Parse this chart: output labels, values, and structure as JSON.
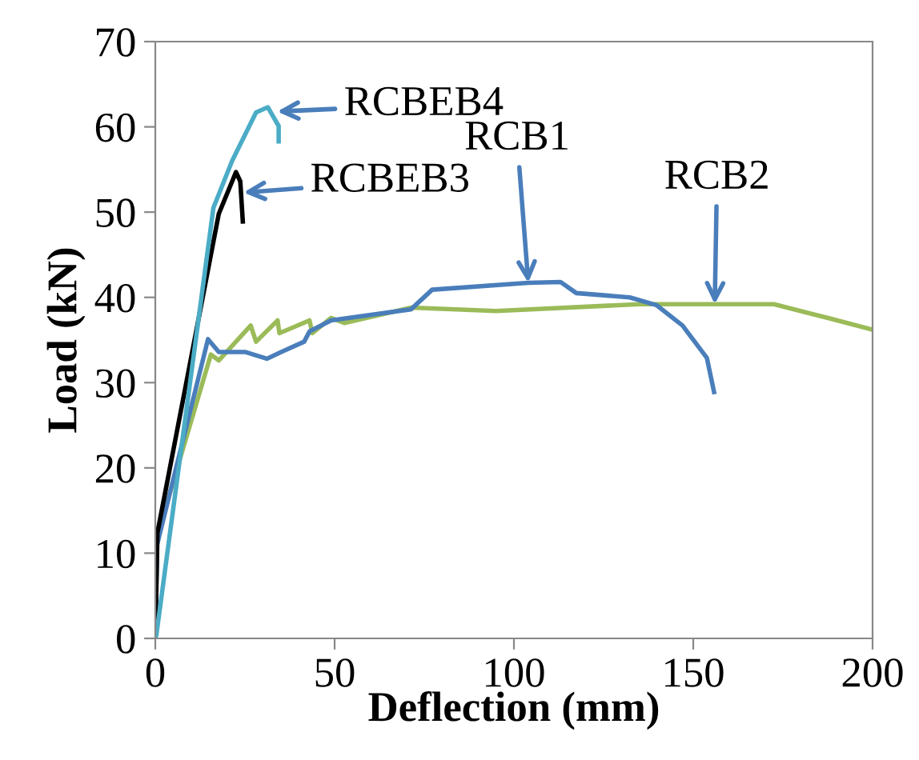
{
  "chart_data": {
    "type": "line",
    "xlabel": "Deflection (mm)",
    "ylabel": "Load (kN)",
    "xlim": [
      0,
      200
    ],
    "ylim": [
      0,
      70
    ],
    "xticks": [
      0,
      50,
      100,
      150,
      200
    ],
    "yticks": [
      0,
      10,
      20,
      30,
      40,
      50,
      60,
      70
    ],
    "grid": false,
    "legend": false,
    "marker": "none",
    "line_style": "solid",
    "series": [
      {
        "color": "#9bbb59",
        "x": [
          0,
          0.5,
          15.5,
          17.7,
          26.6,
          28.1,
          34.1,
          34.6,
          43,
          43.8,
          49,
          52.7,
          71.3,
          95,
          135,
          172.5,
          187.4,
          200
        ],
        "values": [
          0,
          12,
          33.3,
          32.6,
          36.7,
          34.8,
          37.3,
          35.8,
          37.3,
          35.8,
          37.6,
          37,
          38.8,
          38.4,
          39.2,
          39.2,
          37.6,
          36.2
        ]
      },
      {
        "color": "#4a7ebb",
        "x": [
          0,
          0.5,
          14.7,
          17.7,
          25,
          31.1,
          35.1,
          41.5,
          43,
          49,
          71.3,
          77.2,
          104,
          113,
          117.4,
          132.3,
          139.7,
          147,
          153.8,
          155.8
        ],
        "values": [
          0,
          11,
          35.1,
          33.6,
          33.6,
          32.8,
          33.6,
          34.8,
          36,
          37.3,
          38.6,
          40.9,
          41.7,
          41.8,
          40.5,
          40,
          39.1,
          36.7,
          32.9,
          28.9
        ]
      },
      {
        "color": "#000000",
        "x": [
          0,
          0.6,
          17.7,
          22.5,
          23.7,
          24.4
        ],
        "values": [
          0,
          12.4,
          49.8,
          54.7,
          53.6,
          48.9
        ]
      },
      {
        "color": "#4bacc6",
        "x": [
          0,
          0.3,
          16.2,
          21.4,
          28.1,
          31.4,
          32.6,
          34.4,
          34.4
        ],
        "values": [
          0,
          0.4,
          50.5,
          56,
          61.7,
          62.3,
          61.4,
          60.1,
          58.3
        ]
      }
    ],
    "annotations": [
      {
        "text": "RCBEB4",
        "x": 34,
        "y": 61.8
      },
      {
        "text": "RCBEB3",
        "x": 24.6,
        "y": 52.3
      },
      {
        "text": "RCB1",
        "x": 104,
        "y": 41.7
      },
      {
        "text": "RCB2",
        "x": 156,
        "y": 39.2
      }
    ]
  }
}
